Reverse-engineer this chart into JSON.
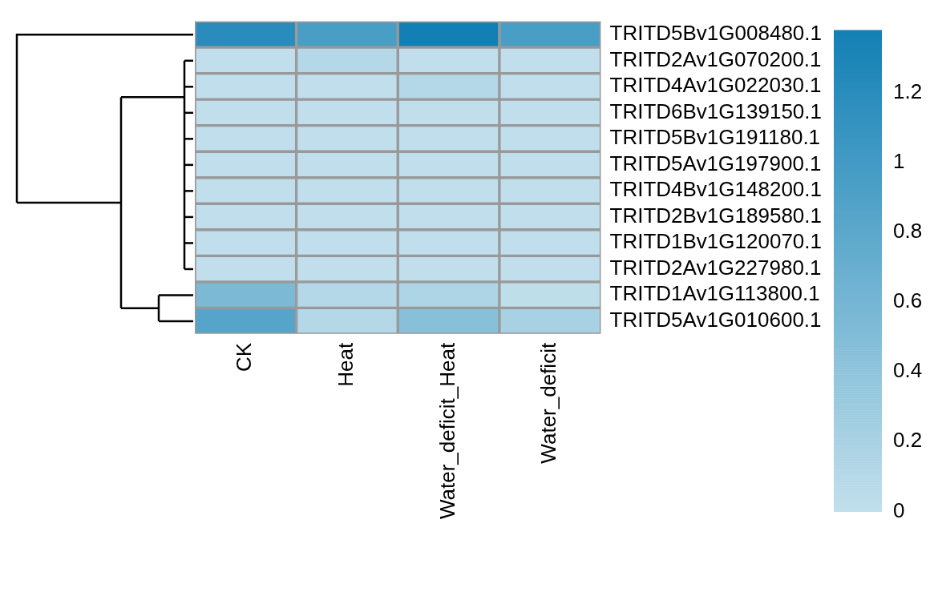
{
  "chart_data": {
    "type": "heatmap",
    "categories": [
      "CK",
      "Heat",
      "Water_deficit_Heat",
      "Water_deficit"
    ],
    "y_categories": [
      "TRITD5Bv1G008480.1",
      "TRITD2Av1G070200.1",
      "TRITD4Av1G022030.1",
      "TRITD6Bv1G139150.1",
      "TRITD5Bv1G191180.1",
      "TRITD5Av1G197900.1",
      "TRITD4Bv1G148200.1",
      "TRITD2Bv1G189580.1",
      "TRITD1Bv1G120070.1",
      "TRITD2Av1G227980.1",
      "TRITD1Av1G113800.1",
      "TRITD5Av1G010600.1"
    ],
    "cells": [
      [
        1.2,
        0.95,
        1.38,
        0.95
      ],
      [
        0.01,
        0.1,
        0.01,
        0.01
      ],
      [
        0.01,
        0.01,
        0.1,
        0.01
      ],
      [
        0.01,
        0.01,
        0.01,
        0.01
      ],
      [
        0.01,
        0.01,
        0.01,
        0.01
      ],
      [
        0.01,
        0.01,
        0.01,
        0.01
      ],
      [
        0.01,
        0.01,
        0.01,
        0.01
      ],
      [
        0.01,
        0.01,
        0.01,
        0.01
      ],
      [
        0.01,
        0.01,
        0.01,
        0.01
      ],
      [
        0.01,
        0.01,
        0.01,
        0.01
      ],
      [
        0.55,
        0.1,
        0.15,
        0.02
      ],
      [
        0.85,
        0.1,
        0.45,
        0.2
      ]
    ],
    "clim": [
      0,
      1.38
    ],
    "cticks": [
      0,
      0.2,
      0.4,
      0.6,
      0.8,
      1,
      1.2
    ]
  }
}
